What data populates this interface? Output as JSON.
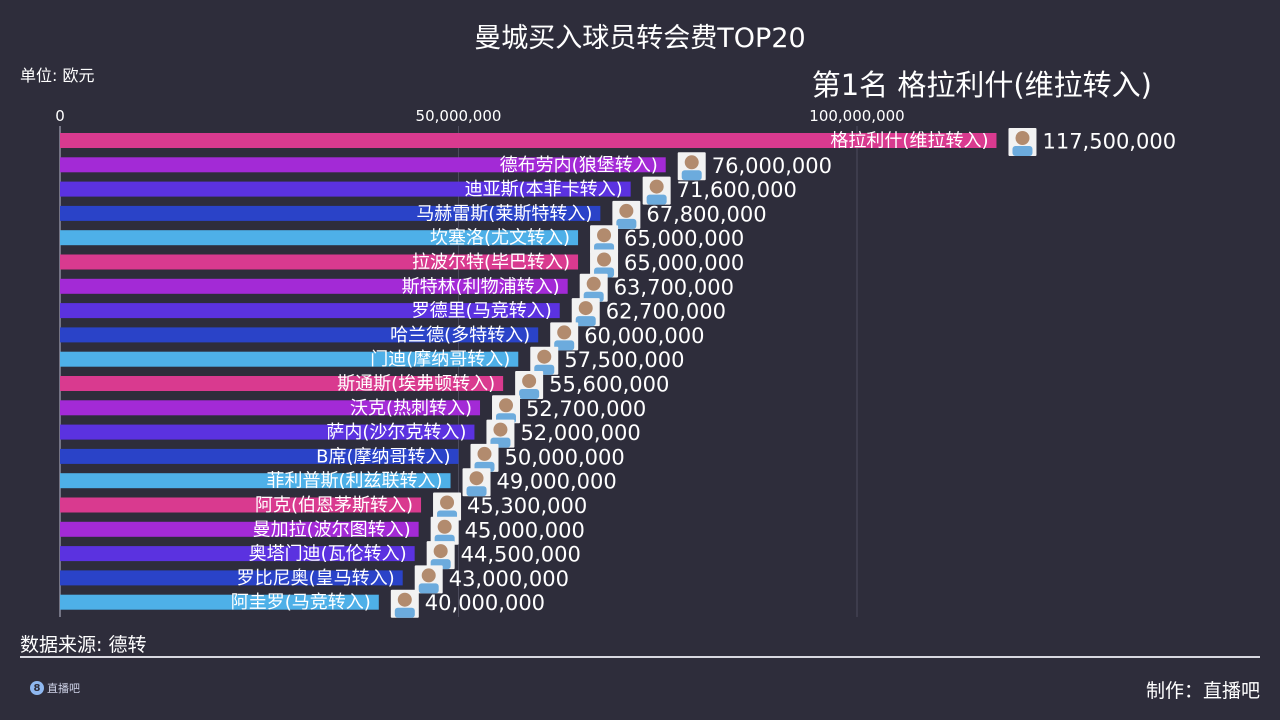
{
  "title": "曼城买入球员转会费TOP20",
  "unit_label": "单位: 欧元",
  "leader_label": "第1名 格拉利什(维拉转入)",
  "source_label": "数据来源: 德转",
  "maker_label": "制作：直播吧",
  "logo_text": "直播吧",
  "logo_mark": "8",
  "colors": {
    "background": "#2e2d3b",
    "magenta": "#d93a8f",
    "purple": "#a32ad6",
    "violet": "#5b32e0",
    "blue": "#2a43c8",
    "sky": "#4eb0e8"
  },
  "chart_data": {
    "type": "bar",
    "orientation": "horizontal",
    "title": "曼城买入球员转会费TOP20",
    "xlim": [
      0,
      120000000
    ],
    "ticks": [
      0,
      50000000,
      100000000
    ],
    "tick_labels": [
      "0",
      "50,000,000",
      "100,000,000"
    ],
    "grid": true,
    "categories": [
      "格拉利什(维拉转入)",
      "德布劳内(狼堡转入)",
      "迪亚斯(本菲卡转入)",
      "马赫雷斯(莱斯特转入)",
      "坎塞洛(尤文转入)",
      "拉波尔特(毕巴转入)",
      "斯特林(利物浦转入)",
      "罗德里(马竞转入)",
      "哈兰德(多特转入)",
      "门迪(摩纳哥转入)",
      "斯通斯(埃弗顿转入)",
      "沃克(热刺转入)",
      "萨内(沙尔克转入)",
      "B席(摩纳哥转入)",
      "菲利普斯(利兹联转入)",
      "阿克(伯恩茅斯转入)",
      "曼加拉(波尔图转入)",
      "奥塔门迪(瓦伦转入)",
      "罗比尼奥(皇马转入)",
      "阿圭罗(马竞转入)"
    ],
    "values": [
      117500000,
      76000000,
      71600000,
      67800000,
      65000000,
      65000000,
      63700000,
      62700000,
      60000000,
      57500000,
      55600000,
      52700000,
      52000000,
      50000000,
      49000000,
      45300000,
      45000000,
      44500000,
      43000000,
      40000000
    ],
    "value_labels": [
      "117,500,000",
      "76,000,000",
      "71,600,000",
      "67,800,000",
      "65,000,000",
      "65,000,000",
      "63,700,000",
      "62,700,000",
      "60,000,000",
      "57,500,000",
      "55,600,000",
      "52,700,000",
      "52,000,000",
      "50,000,000",
      "49,000,000",
      "45,300,000",
      "45,000,000",
      "44,500,000",
      "43,000,000",
      "40,000,000"
    ],
    "bar_colors": [
      "#d93a8f",
      "#a32ad6",
      "#5b32e0",
      "#2a43c8",
      "#4eb0e8",
      "#d93a8f",
      "#a32ad6",
      "#5b32e0",
      "#2a43c8",
      "#4eb0e8",
      "#d93a8f",
      "#a32ad6",
      "#5b32e0",
      "#2a43c8",
      "#4eb0e8",
      "#d93a8f",
      "#a32ad6",
      "#5b32e0",
      "#2a43c8",
      "#4eb0e8"
    ]
  }
}
